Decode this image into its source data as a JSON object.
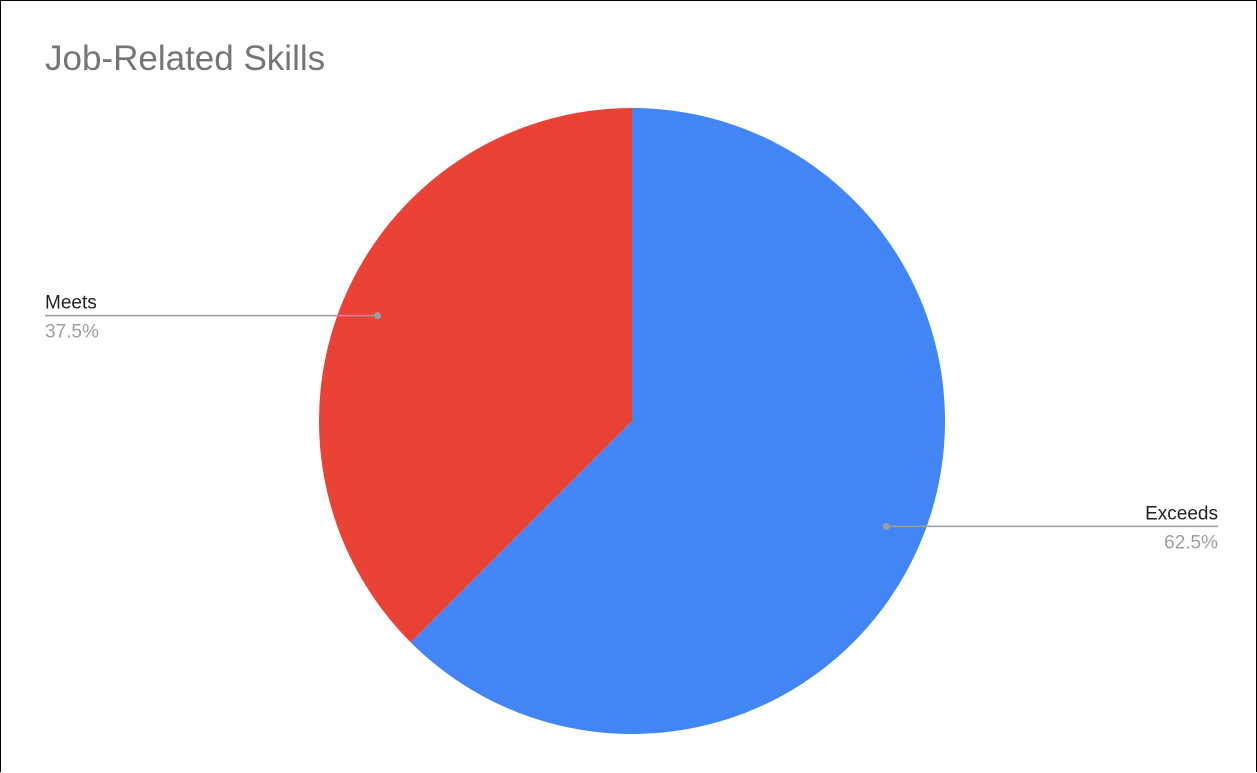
{
  "chart_data": {
    "type": "pie",
    "title": "Job-Related Skills",
    "slices": [
      {
        "label": "Exceeds",
        "value": 62.5,
        "percent_label": "62.5%",
        "color": "#4285f4"
      },
      {
        "label": "Meets",
        "value": 37.5,
        "percent_label": "37.5%",
        "color": "#ea4335"
      }
    ],
    "start_angle": "12 o'clock",
    "direction": "clockwise",
    "legend": "none",
    "label_style": "callout lines with name and percent"
  },
  "colors": {
    "title": "#757575",
    "label_name": "#222222",
    "label_percent": "#9e9e9e",
    "leader_line": "#9e9e9e"
  }
}
